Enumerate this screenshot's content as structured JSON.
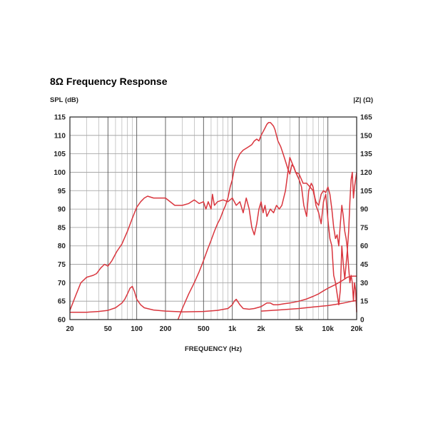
{
  "chart_data": {
    "type": "line",
    "title": "8Ω Frequency Response",
    "xlabel": "FREQUENCY (Hz)",
    "ylabel": "SPL (dB)",
    "y2label": "|Z| (Ω)",
    "xscale": "log",
    "xlim": [
      20,
      20000
    ],
    "ylim": [
      60,
      115
    ],
    "y2lim": [
      0,
      165
    ],
    "x_ticks": [
      20,
      50,
      100,
      200,
      500,
      1000,
      2000,
      5000,
      10000,
      20000
    ],
    "x_tick_labels": [
      "20",
      "50",
      "100",
      "200",
      "500",
      "1k",
      "2k",
      "5k",
      "10k",
      "20k"
    ],
    "y_ticks": [
      60,
      65,
      70,
      75,
      80,
      85,
      90,
      95,
      100,
      105,
      110,
      115
    ],
    "y2_ticks": [
      0,
      15,
      30,
      45,
      60,
      75,
      90,
      105,
      120,
      135,
      150,
      165
    ],
    "grid": true,
    "line_color": "#d9363e",
    "series": [
      {
        "axis": "left",
        "x": [
          20,
          23,
          26,
          30,
          35,
          38,
          42,
          46,
          50,
          55,
          62,
          70,
          80,
          90,
          100,
          110,
          120,
          130,
          150,
          180,
          200,
          250,
          300,
          350,
          400,
          450,
          500,
          530,
          560,
          600,
          620,
          650,
          700,
          800,
          900,
          1000,
          1100,
          1200,
          1300,
          1400,
          1500,
          1600,
          1700,
          1800,
          1900,
          2000,
          2100,
          2200,
          2300,
          2500,
          2700,
          2900,
          3100,
          3300,
          3600,
          4000,
          4300,
          4600,
          5000,
          5300,
          5600,
          6000,
          6300,
          6700,
          7000,
          7500,
          8000,
          8500,
          9000,
          9500,
          10000,
          10500,
          11000,
          11500,
          12000,
          12500,
          13000,
          13500,
          14000,
          14500,
          15000,
          15500,
          16000,
          16500,
          17000,
          17500,
          18000,
          18500,
          19000,
          19500,
          20000
        ],
        "values": [
          62.5,
          66.5,
          70.0,
          71.5,
          72.0,
          72.5,
          74.0,
          75.0,
          74.5,
          76.0,
          78.5,
          80.5,
          84.0,
          87.5,
          90.5,
          92.0,
          93.0,
          93.5,
          93.0,
          93.0,
          93.0,
          91.0,
          91.0,
          91.5,
          92.5,
          91.5,
          92.0,
          90.0,
          92.0,
          90.0,
          94.0,
          91.0,
          92.0,
          92.5,
          92.0,
          93.0,
          91.0,
          92.0,
          89.0,
          93.0,
          90.0,
          85.0,
          83.0,
          86.0,
          90.0,
          92.0,
          89.0,
          91.0,
          88.0,
          90.0,
          89.0,
          91.0,
          90.0,
          91.0,
          95.0,
          104.0,
          102.0,
          100.0,
          98.0,
          96.0,
          91.0,
          88.0,
          95.0,
          97.0,
          96.0,
          91.0,
          89.0,
          86.0,
          92.0,
          94.0,
          87.0,
          82.0,
          80.0,
          72.0,
          70.0,
          67.0,
          64.0,
          68.0,
          80.0,
          75.0,
          71.0,
          75.0,
          79.0,
          84.0,
          92.0,
          98.0,
          100.0,
          93.0,
          96.0,
          98.0,
          100.0
        ]
      },
      {
        "axis": "left",
        "x": [
          270,
          300,
          350,
          400,
          450,
          500,
          550,
          600,
          650,
          700,
          750,
          800,
          850,
          900,
          950,
          1000,
          1050,
          1100,
          1200,
          1300,
          1400,
          1500,
          1600,
          1700,
          1800,
          1900,
          2000,
          2100,
          2200,
          2300,
          2400,
          2500,
          2600,
          2700,
          2800,
          2900,
          3000,
          3200,
          3400,
          3600,
          3800,
          4000,
          4200,
          4400,
          4600,
          5000,
          5500,
          6000,
          6500,
          7000,
          7500,
          8000,
          8500,
          9000,
          9500,
          10000,
          10500,
          11000,
          11500,
          12000,
          12500,
          13000,
          13500,
          14000,
          14500,
          15000,
          15500,
          16000,
          16500,
          17000,
          17500,
          18000,
          18500,
          19000,
          19500,
          20000
        ],
        "values": [
          60.0,
          63.0,
          67.0,
          70.0,
          73.0,
          76.0,
          79.0,
          81.5,
          84.0,
          86.0,
          87.5,
          89.5,
          91.0,
          93.0,
          96.0,
          98.0,
          101.0,
          103.0,
          105.0,
          106.0,
          106.5,
          107.0,
          107.5,
          108.5,
          109.0,
          108.5,
          110.0,
          111.0,
          112.0,
          113.0,
          113.5,
          113.5,
          113.0,
          112.5,
          111.5,
          110.0,
          108.5,
          107.0,
          105.0,
          103.0,
          101.0,
          99.5,
          102.0,
          101.5,
          100.0,
          99.5,
          97.0,
          97.0,
          96.0,
          95.0,
          92.0,
          91.0,
          94.0,
          95.0,
          94.5,
          96.0,
          94.0,
          90.0,
          85.0,
          82.0,
          83.0,
          80.0,
          86.0,
          91.0,
          88.0,
          84.0,
          82.0,
          79.0,
          74.0,
          70.0,
          72.0,
          70.0,
          65.0,
          70.0,
          68.0,
          62.0
        ]
      },
      {
        "axis": "left",
        "x": [
          20,
          30,
          40,
          50,
          60,
          70,
          75,
          80,
          85,
          90,
          95,
          100,
          110,
          120,
          150,
          200,
          300,
          500,
          700,
          900,
          1000,
          1050,
          1100,
          1200,
          1300,
          1500,
          1700,
          2000,
          2300,
          2500,
          2700,
          3000,
          3500,
          4000,
          5000,
          6000,
          7000,
          8000,
          9000,
          10000,
          12000,
          14000,
          16000,
          18000,
          20000
        ],
        "values": [
          62.0,
          62.0,
          62.2,
          62.5,
          63.2,
          64.5,
          65.5,
          67.0,
          68.5,
          69.0,
          67.5,
          65.5,
          64.0,
          63.2,
          62.6,
          62.3,
          62.1,
          62.2,
          62.5,
          63.0,
          64.0,
          65.0,
          65.5,
          64.0,
          63.0,
          62.8,
          63.0,
          63.5,
          64.5,
          64.5,
          64.0,
          64.0,
          64.3,
          64.5,
          65.0,
          65.6,
          66.3,
          67.0,
          67.8,
          68.5,
          69.5,
          70.5,
          71.5,
          71.8,
          71.8
        ]
      },
      {
        "axis": "left",
        "x": [
          2000,
          3000,
          5000,
          7000,
          10000,
          12000,
          14000,
          16000,
          18000,
          20000
        ],
        "values": [
          62.3,
          62.6,
          63.0,
          63.4,
          63.8,
          64.1,
          64.4,
          64.7,
          65.0,
          65.2
        ]
      }
    ]
  }
}
